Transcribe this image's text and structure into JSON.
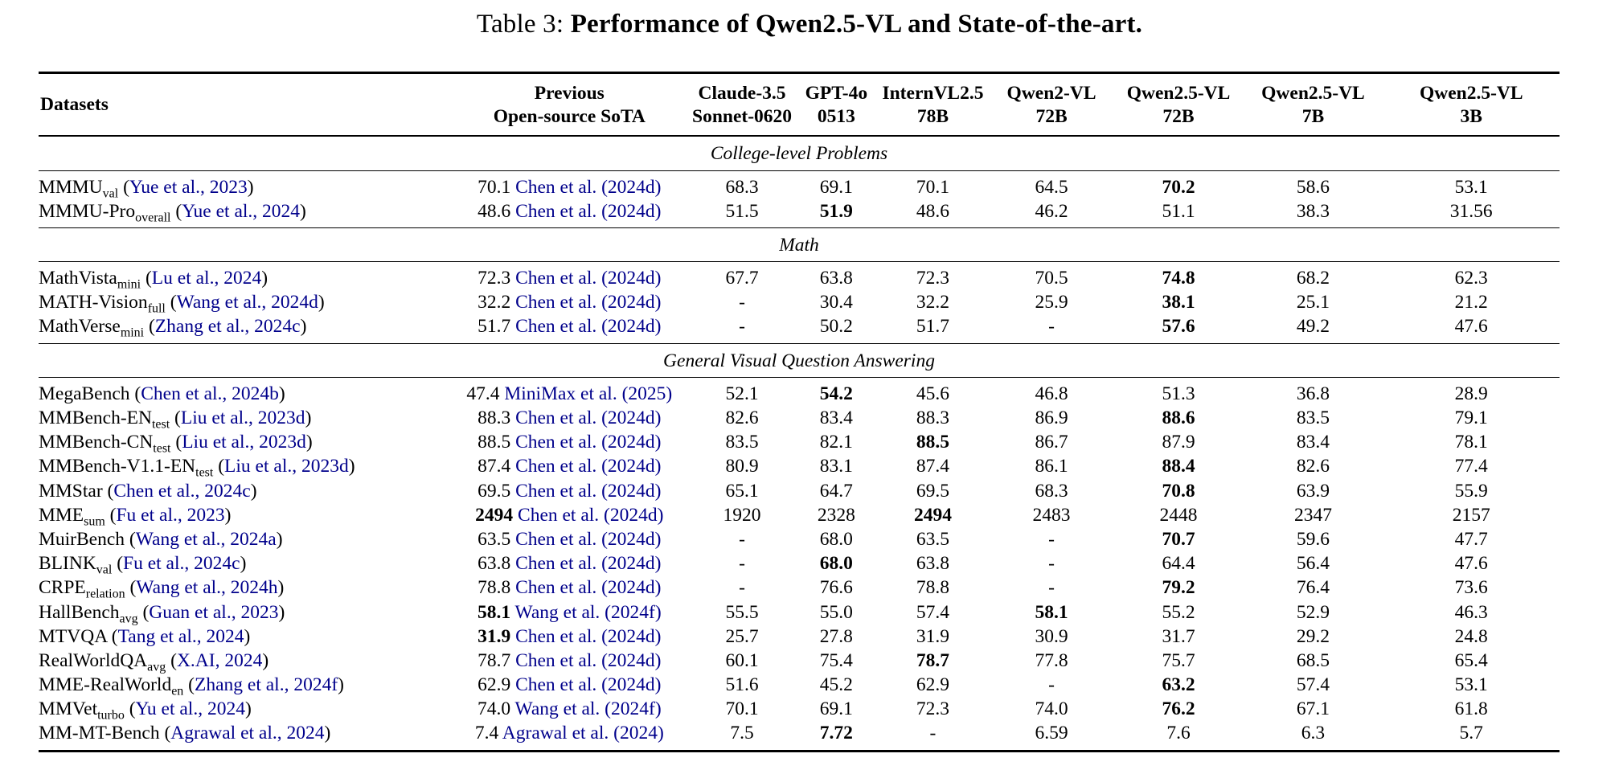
{
  "title": {
    "prefix": "Table 3: ",
    "bold": "Performance of Qwen2.5-VL and State-of-the-art."
  },
  "link_color": "#00008b",
  "table": {
    "columns": [
      "Datasets",
      "Previous\nOpen-source SoTA",
      "Claude-3.5\nSonnet-0620",
      "GPT-4o\n0513",
      "InternVL2.5\n78B",
      "Qwen2-VL\n72B",
      "Qwen2.5-VL\n72B",
      "Qwen2.5-VL\n7B",
      "Qwen2.5-VL\n3B"
    ],
    "sections": [
      {
        "label": "College-level Problems",
        "rows": [
          {
            "dataset": {
              "name": "MMMU",
              "sub": "val",
              "cite": "Yue et al., 2023"
            },
            "sota": {
              "value": "70.1",
              "bold": false,
              "cite": "Chen et al. (2024d)"
            },
            "values": [
              "68.3",
              "69.1",
              "70.1",
              "64.5",
              "70.2",
              "58.6",
              "53.1"
            ],
            "bold": [
              4
            ]
          },
          {
            "dataset": {
              "name": "MMMU-Pro",
              "sub": "overall",
              "cite": "Yue et al., 2024"
            },
            "sota": {
              "value": "48.6",
              "bold": false,
              "cite": "Chen et al. (2024d)"
            },
            "values": [
              "51.5",
              "51.9",
              "48.6",
              "46.2",
              "51.1",
              "38.3",
              "31.56"
            ],
            "bold": [
              1
            ]
          }
        ]
      },
      {
        "label": "Math",
        "rows": [
          {
            "dataset": {
              "name": "MathVista",
              "sub": "mini",
              "cite": "Lu et al., 2024"
            },
            "sota": {
              "value": "72.3",
              "bold": false,
              "cite": "Chen et al. (2024d)"
            },
            "values": [
              "67.7",
              "63.8",
              "72.3",
              "70.5",
              "74.8",
              "68.2",
              "62.3"
            ],
            "bold": [
              4
            ]
          },
          {
            "dataset": {
              "name": "MATH-Vision",
              "sub": "full",
              "cite": "Wang et al., 2024d"
            },
            "sota": {
              "value": "32.2",
              "bold": false,
              "cite": "Chen et al. (2024d)"
            },
            "values": [
              "-",
              "30.4",
              "32.2",
              "25.9",
              "38.1",
              "25.1",
              "21.2"
            ],
            "bold": [
              4
            ]
          },
          {
            "dataset": {
              "name": "MathVerse",
              "sub": "mini",
              "cite": "Zhang et al., 2024c"
            },
            "sota": {
              "value": "51.7",
              "bold": false,
              "cite": "Chen et al. (2024d)"
            },
            "values": [
              "-",
              "50.2",
              "51.7",
              "-",
              "57.6",
              "49.2",
              "47.6"
            ],
            "bold": [
              4
            ]
          }
        ]
      },
      {
        "label": "General Visual Question Answering",
        "rows": [
          {
            "dataset": {
              "name": "MegaBench",
              "sub": "",
              "cite": "Chen et al., 2024b"
            },
            "sota": {
              "value": "47.4",
              "bold": false,
              "cite": "MiniMax et al. (2025)"
            },
            "values": [
              "52.1",
              "54.2",
              "45.6",
              "46.8",
              "51.3",
              "36.8",
              "28.9"
            ],
            "bold": [
              1
            ]
          },
          {
            "dataset": {
              "name": "MMBench-EN",
              "sub": "test",
              "cite": "Liu et al., 2023d"
            },
            "sota": {
              "value": "88.3",
              "bold": false,
              "cite": "Chen et al. (2024d)"
            },
            "values": [
              "82.6",
              "83.4",
              "88.3",
              "86.9",
              "88.6",
              "83.5",
              "79.1"
            ],
            "bold": [
              4
            ]
          },
          {
            "dataset": {
              "name": "MMBench-CN",
              "sub": "test",
              "cite": "Liu et al., 2023d"
            },
            "sota": {
              "value": "88.5",
              "bold": false,
              "cite": "Chen et al. (2024d)"
            },
            "values": [
              "83.5",
              "82.1",
              "88.5",
              "86.7",
              "87.9",
              "83.4",
              "78.1"
            ],
            "bold": [
              2
            ]
          },
          {
            "dataset": {
              "name": "MMBench-V1.1-EN",
              "sub": "test",
              "cite": "Liu et al., 2023d"
            },
            "sota": {
              "value": "87.4",
              "bold": false,
              "cite": "Chen et al. (2024d)"
            },
            "values": [
              "80.9",
              "83.1",
              "87.4",
              "86.1",
              "88.4",
              "82.6",
              "77.4"
            ],
            "bold": [
              4
            ]
          },
          {
            "dataset": {
              "name": "MMStar",
              "sub": "",
              "cite": "Chen et al., 2024c"
            },
            "sota": {
              "value": "69.5",
              "bold": false,
              "cite": "Chen et al. (2024d)"
            },
            "values": [
              "65.1",
              "64.7",
              "69.5",
              "68.3",
              "70.8",
              "63.9",
              "55.9"
            ],
            "bold": [
              4
            ]
          },
          {
            "dataset": {
              "name": "MME",
              "sub": "sum",
              "cite": "Fu et al., 2023"
            },
            "sota": {
              "value": "2494",
              "bold": true,
              "cite": "Chen et al. (2024d)"
            },
            "values": [
              "1920",
              "2328",
              "2494",
              "2483",
              "2448",
              "2347",
              "2157"
            ],
            "bold": [
              2
            ]
          },
          {
            "dataset": {
              "name": "MuirBench",
              "sub": "",
              "cite": "Wang et al., 2024a"
            },
            "sota": {
              "value": "63.5",
              "bold": false,
              "cite": "Chen et al. (2024d)"
            },
            "values": [
              "-",
              "68.0",
              "63.5",
              "-",
              "70.7",
              "59.6",
              "47.7"
            ],
            "bold": [
              4
            ]
          },
          {
            "dataset": {
              "name": "BLINK",
              "sub": "val",
              "cite": "Fu et al., 2024c"
            },
            "sota": {
              "value": "63.8",
              "bold": false,
              "cite": "Chen et al. (2024d)"
            },
            "values": [
              "-",
              "68.0",
              "63.8",
              "-",
              "64.4",
              "56.4",
              "47.6"
            ],
            "bold": [
              1
            ]
          },
          {
            "dataset": {
              "name": "CRPE",
              "sub": "relation",
              "cite": "Wang et al., 2024h"
            },
            "sota": {
              "value": "78.8",
              "bold": false,
              "cite": "Chen et al. (2024d)"
            },
            "values": [
              "-",
              "76.6",
              "78.8",
              "-",
              "79.2",
              "76.4",
              "73.6"
            ],
            "bold": [
              4
            ]
          },
          {
            "dataset": {
              "name": "HallBench",
              "sub": "avg",
              "cite": "Guan et al., 2023"
            },
            "sota": {
              "value": "58.1",
              "bold": true,
              "cite": "Wang et al. (2024f)"
            },
            "values": [
              "55.5",
              "55.0",
              "57.4",
              "58.1",
              "55.2",
              "52.9",
              "46.3"
            ],
            "bold": [
              3
            ]
          },
          {
            "dataset": {
              "name": "MTVQA",
              "sub": "",
              "cite": "Tang et al., 2024"
            },
            "sota": {
              "value": "31.9",
              "bold": true,
              "cite": "Chen et al. (2024d)"
            },
            "values": [
              "25.7",
              "27.8",
              "31.9",
              "30.9",
              "31.7",
              "29.2",
              "24.8"
            ],
            "bold": []
          },
          {
            "dataset": {
              "name": "RealWorldQA",
              "sub": "avg",
              "cite": "X.AI, 2024"
            },
            "sota": {
              "value": "78.7",
              "bold": false,
              "cite": "Chen et al. (2024d)"
            },
            "values": [
              "60.1",
              "75.4",
              "78.7",
              "77.8",
              "75.7",
              "68.5",
              "65.4"
            ],
            "bold": [
              2
            ]
          },
          {
            "dataset": {
              "name": "MME-RealWorld",
              "sub": "en",
              "cite": "Zhang et al., 2024f"
            },
            "sota": {
              "value": "62.9",
              "bold": false,
              "cite": "Chen et al. (2024d)"
            },
            "values": [
              "51.6",
              "45.2",
              "62.9",
              "-",
              "63.2",
              "57.4",
              "53.1"
            ],
            "bold": [
              4
            ]
          },
          {
            "dataset": {
              "name": "MMVet",
              "sub": "turbo",
              "cite": "Yu et al., 2024"
            },
            "sota": {
              "value": "74.0",
              "bold": false,
              "cite": "Wang et al. (2024f)"
            },
            "values": [
              "70.1",
              "69.1",
              "72.3",
              "74.0",
              "76.2",
              "67.1",
              "61.8"
            ],
            "bold": [
              4
            ]
          },
          {
            "dataset": {
              "name": "MM-MT-Bench",
              "sub": "",
              "cite": "Agrawal et al., 2024"
            },
            "sota": {
              "value": "7.4",
              "bold": false,
              "cite": "Agrawal et al. (2024)"
            },
            "values": [
              "7.5",
              "7.72",
              "-",
              "6.59",
              "7.6",
              "6.3",
              "5.7"
            ],
            "bold": [
              1
            ]
          }
        ]
      }
    ]
  }
}
